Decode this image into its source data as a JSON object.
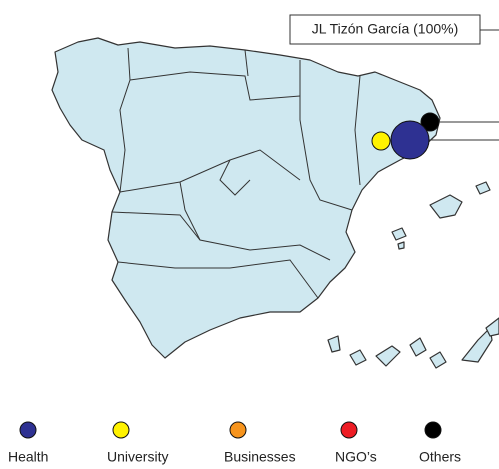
{
  "map": {
    "callout": "JL Tizón García (100%)",
    "legend": [
      {
        "name": "Health",
        "color": "#2e3192"
      },
      {
        "name": "University",
        "color": "#fff200"
      },
      {
        "name": "Businesses",
        "color": "#f7941d"
      },
      {
        "name": "NGO’s",
        "color": "#ed1c24"
      },
      {
        "name": "Others",
        "color": "#000000"
      }
    ]
  }
}
